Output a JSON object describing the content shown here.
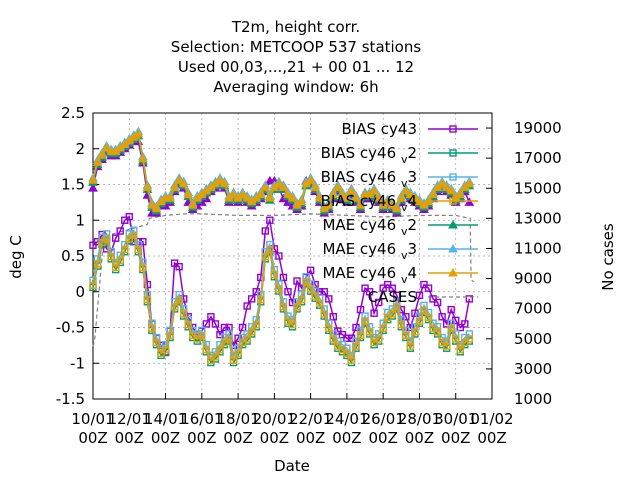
{
  "chart_data": {
    "type": "line",
    "title_lines": [
      "T2m, height corr.",
      "Selection: METCOOP    537 stations",
      "Used  00,03,...,21  + 00 01 ... 12",
      "Averaging window:  6h"
    ],
    "xlabel": "Date",
    "ylabel": "deg C",
    "y2label": "No cases",
    "ylim": [
      -1.5,
      2.5
    ],
    "y2lim": [
      1000,
      20000
    ],
    "xlim": [
      0,
      22
    ],
    "yticks": [
      "2.5",
      "2",
      "1.5",
      "1",
      "0.5",
      "0",
      "-0.5",
      "-1",
      "-1.5"
    ],
    "y2ticks": [
      "19000",
      "17000",
      "15000",
      "13000",
      "11000",
      "9000",
      "7000",
      "5000",
      "3000",
      "1000"
    ],
    "xticks": [
      {
        "day": "10/01",
        "hour": "00Z"
      },
      {
        "day": "12/01",
        "hour": "00Z"
      },
      {
        "day": "14/01",
        "hour": "00Z"
      },
      {
        "day": "16/01",
        "hour": "00Z"
      },
      {
        "day": "18/01",
        "hour": "00Z"
      },
      {
        "day": "20/01",
        "hour": "00Z"
      },
      {
        "day": "22/01",
        "hour": "00Z"
      },
      {
        "day": "24/01",
        "hour": "00Z"
      },
      {
        "day": "26/01",
        "hour": "00Z"
      },
      {
        "day": "28/01",
        "hour": "00Z"
      },
      {
        "day": "30/01",
        "hour": "00Z"
      },
      {
        "day": "01/02",
        "hour": "00Z"
      }
    ],
    "grid": true,
    "legend_position": "top-right",
    "series": [
      {
        "name": "BIAS cy43",
        "kind": "bias",
        "color": "#9400d3",
        "marker": "square",
        "model": "cy43"
      },
      {
        "name": "BIAS cy46_v2",
        "kind": "bias",
        "color": "#009e73",
        "marker": "square",
        "model": "v2"
      },
      {
        "name": "BIAS cy46_v3",
        "kind": "bias",
        "color": "#56b4e9",
        "marker": "square",
        "model": "v3"
      },
      {
        "name": "BIAS cy46_v4",
        "kind": "bias",
        "color": "#e69f00",
        "marker": "square",
        "model": "v4"
      },
      {
        "name": "MAE cy46_v2",
        "kind": "mae",
        "color": "#009e73",
        "marker": "triangle",
        "model": "v2"
      },
      {
        "name": "MAE cy46_v3",
        "kind": "mae",
        "color": "#56b4e9",
        "marker": "triangle",
        "model": "v3"
      },
      {
        "name": "MAE cy46_v4",
        "kind": "mae",
        "color": "#e69f00",
        "marker": "triangle",
        "model": "v4"
      },
      {
        "name": "CASES",
        "kind": "cases",
        "color": "#808080",
        "marker": "none",
        "model": "cases"
      }
    ],
    "legend_layout": [
      {
        "main": "BIAS cy43",
        "sub": ""
      },
      {
        "main": "BIAS cy46",
        "sub": "v",
        "tail": "2"
      },
      {
        "main": "BIAS cy46",
        "sub": "v",
        "tail": "3"
      },
      {
        "main": "BIAS cy46",
        "sub": "v",
        "tail": "4"
      },
      {
        "main": "MAE cy46",
        "sub": "v",
        "tail": "2"
      },
      {
        "main": "MAE cy46",
        "sub": "v",
        "tail": "3"
      },
      {
        "main": "MAE cy46",
        "sub": "v",
        "tail": "4"
      },
      {
        "main": "CASES",
        "sub": ""
      }
    ],
    "mae_base": {
      "x": [
        0,
        0.25,
        0.5,
        0.75,
        1,
        1.25,
        1.5,
        1.75,
        2,
        2.25,
        2.5,
        2.75,
        3,
        3.25,
        3.5,
        3.75,
        4,
        4.25,
        4.5,
        4.75,
        5,
        5.25,
        5.5,
        5.75,
        6,
        6.25,
        6.5,
        6.75,
        7,
        7.25,
        7.5,
        7.75,
        8,
        8.25,
        8.5,
        8.75,
        9,
        9.25,
        9.5,
        9.75,
        10,
        10.25,
        10.5,
        10.75,
        11,
        11.25,
        11.5,
        11.75,
        12,
        12.25,
        12.5,
        12.75,
        13,
        13.25,
        13.5,
        13.75,
        14,
        14.25,
        14.5,
        14.75,
        15,
        15.25,
        15.5,
        15.75,
        16,
        16.25,
        16.5,
        16.75,
        17,
        17.25,
        17.5,
        17.75,
        18,
        18.25,
        18.5,
        18.75,
        19,
        19.25,
        19.5,
        19.75,
        20,
        20.25,
        20.5,
        20.75
      ],
      "y": [
        1.55,
        1.8,
        1.9,
        2.0,
        1.95,
        1.95,
        2.0,
        2.05,
        2.1,
        2.15,
        2.2,
        1.85,
        1.45,
        1.2,
        1.15,
        1.25,
        1.3,
        1.3,
        1.45,
        1.55,
        1.5,
        1.35,
        1.2,
        1.3,
        1.35,
        1.4,
        1.45,
        1.5,
        1.55,
        1.5,
        1.3,
        1.35,
        1.3,
        1.35,
        1.3,
        1.25,
        1.3,
        1.35,
        1.45,
        1.3,
        1.45,
        1.5,
        1.45,
        1.35,
        1.3,
        1.2,
        1.25,
        1.5,
        1.55,
        1.45,
        1.3,
        1.15,
        1.2,
        1.35,
        1.45,
        1.35,
        1.3,
        1.4,
        1.3,
        1.2,
        1.35,
        1.35,
        1.4,
        1.3,
        1.2,
        1.25,
        1.2,
        1.15,
        1.3,
        1.4,
        1.35,
        1.3,
        1.25,
        1.2,
        1.25,
        1.35,
        1.45,
        1.5,
        1.45,
        1.4,
        1.3,
        1.35,
        1.45,
        1.5
      ]
    },
    "mae_offsets": {
      "v2": -0.02,
      "v3": 0.04,
      "v4": 0.01
    },
    "mae_cy43": {
      "x": [],
      "y": []
    },
    "bias_base": {
      "x": [
        0,
        0.25,
        0.5,
        0.75,
        1,
        1.25,
        1.5,
        1.75,
        2,
        2.25,
        2.5,
        2.75,
        3,
        3.25,
        3.5,
        3.75,
        4,
        4.25,
        4.5,
        4.75,
        5,
        5.25,
        5.5,
        5.75,
        6,
        6.25,
        6.5,
        6.75,
        7,
        7.25,
        7.5,
        7.75,
        8,
        8.25,
        8.5,
        8.75,
        9,
        9.25,
        9.5,
        9.75,
        10,
        10.25,
        10.5,
        10.75,
        11,
        11.25,
        11.5,
        11.75,
        12,
        12.25,
        12.5,
        12.75,
        13,
        13.25,
        13.5,
        13.75,
        14,
        14.25,
        14.5,
        14.75,
        15,
        15.25,
        15.5,
        15.75,
        16,
        16.25,
        16.5,
        16.75,
        17,
        17.25,
        17.5,
        17.75,
        18,
        18.25,
        18.5,
        18.75,
        19,
        19.25,
        19.5,
        19.75,
        20,
        20.25,
        20.5,
        20.75
      ],
      "y": [
        0.1,
        0.4,
        0.7,
        0.75,
        0.5,
        0.35,
        0.45,
        0.6,
        0.75,
        0.8,
        0.6,
        0.35,
        -0.1,
        -0.5,
        -0.7,
        -0.85,
        -0.8,
        -0.6,
        -0.2,
        -0.1,
        -0.3,
        -0.45,
        -0.6,
        -0.65,
        -0.6,
        -0.8,
        -0.95,
        -0.9,
        -0.8,
        -0.7,
        -0.65,
        -0.95,
        -0.85,
        -0.7,
        -0.65,
        -0.55,
        -0.45,
        -0.1,
        0.5,
        0.6,
        0.25,
        0.05,
        -0.2,
        -0.4,
        -0.45,
        -0.2,
        -0.1,
        0.15,
        0.05,
        -0.05,
        -0.15,
        -0.3,
        -0.5,
        -0.65,
        -0.75,
        -0.8,
        -0.85,
        -0.95,
        -0.75,
        -0.6,
        -0.4,
        -0.55,
        -0.7,
        -0.65,
        -0.5,
        -0.35,
        -0.3,
        -0.2,
        -0.45,
        -0.6,
        -0.75,
        -0.55,
        -0.4,
        -0.25,
        -0.35,
        -0.5,
        -0.55,
        -0.7,
        -0.75,
        -0.5,
        -0.65,
        -0.8,
        -0.7,
        -0.65
      ]
    },
    "bias_offsets": {
      "v2": -0.04,
      "v3": 0.06,
      "v4": -0.01
    },
    "bias_cy43": {
      "x": [
        0,
        0.25,
        0.5,
        0.75,
        1,
        1.25,
        1.5,
        1.75,
        2,
        2.25,
        2.5,
        2.75,
        3,
        3.25,
        3.5,
        3.75,
        4,
        4.25,
        4.5,
        4.75,
        5,
        5.25,
        5.5,
        5.75,
        6,
        6.25,
        6.5,
        6.75,
        7,
        7.25,
        7.5,
        7.75,
        8,
        8.25,
        8.5,
        8.75,
        9,
        9.25,
        9.5,
        9.75,
        10,
        10.25,
        10.5,
        10.75,
        11,
        11.25,
        11.5,
        11.75,
        12,
        12.25,
        12.5,
        12.75,
        13,
        13.25,
        13.5,
        13.75,
        14,
        14.25,
        14.5,
        14.75,
        15,
        15.25,
        15.5,
        15.75,
        16,
        16.25,
        16.5,
        16.75,
        17,
        17.25,
        17.5,
        17.75,
        18,
        18.25,
        18.5,
        18.75,
        19,
        19.25,
        19.5,
        19.75,
        20,
        20.25,
        20.5,
        20.75
      ],
      "y": [
        0.65,
        0.7,
        0.8,
        0.6,
        0.55,
        0.75,
        0.85,
        1.0,
        1.05,
        0.7,
        0.7,
        0.7,
        0.1,
        -0.45,
        -0.65,
        -0.75,
        -0.85,
        -0.55,
        0.4,
        0.35,
        -0.1,
        -0.35,
        -0.5,
        -0.6,
        -0.55,
        -0.45,
        -0.35,
        -0.45,
        -0.6,
        -0.5,
        -0.5,
        -0.75,
        -0.65,
        -0.5,
        -0.2,
        -0.1,
        0.0,
        0.2,
        0.85,
        1.0,
        0.6,
        0.5,
        0.2,
        0.0,
        -0.15,
        0.15,
        0.05,
        0.2,
        0.3,
        0.1,
        0.0,
        0.0,
        -0.1,
        -0.35,
        -0.55,
        -0.6,
        -0.65,
        -0.65,
        -0.5,
        -0.25,
        0.05,
        0.0,
        -0.3,
        -0.15,
        0.05,
        0.1,
        0.05,
        -0.05,
        -0.25,
        -0.35,
        -0.5,
        -0.3,
        -0.05,
        0.1,
        0.05,
        -0.1,
        -0.15,
        -0.35,
        -0.45,
        -0.25,
        -0.4,
        -0.5,
        -0.45,
        -0.1
      ]
    },
    "mae_cy43_y": [
      1.45,
      1.75,
      1.85,
      1.95,
      1.9,
      1.9,
      1.95,
      2.0,
      2.05,
      2.1,
      2.1,
      1.8,
      1.35,
      1.1,
      1.1,
      1.2,
      1.2,
      1.25,
      1.4,
      1.5,
      1.45,
      1.25,
      1.15,
      1.2,
      1.25,
      1.3,
      1.4,
      1.45,
      1.5,
      1.45,
      1.25,
      1.3,
      1.25,
      1.3,
      1.25,
      1.2,
      1.25,
      1.3,
      1.4,
      1.55,
      1.55,
      1.45,
      1.3,
      1.25,
      1.2,
      1.15,
      1.2,
      1.55,
      1.5,
      1.4,
      1.25,
      1.1,
      1.15,
      1.3,
      1.4,
      1.3,
      1.25,
      1.35,
      1.25,
      1.15,
      1.3,
      1.3,
      1.35,
      1.25,
      1.15,
      1.2,
      1.15,
      1.1,
      1.25,
      1.35,
      1.3,
      1.25,
      1.2,
      1.15,
      1.2,
      1.3,
      1.4,
      1.45,
      1.4,
      1.35,
      1.25,
      1.3,
      1.4,
      1.25
    ],
    "cases": {
      "x": [
        0,
        0.1,
        0.6,
        1.2,
        3.0,
        3.1,
        4.0,
        5.0,
        6.0,
        8.0,
        10.0,
        12.0,
        14.0,
        16.0,
        18.0,
        19.0,
        20.0,
        20.8,
        20.85,
        21.0
      ],
      "y": [
        4500,
        5000,
        11800,
        12000,
        12600,
        13000,
        13200,
        13300,
        13300,
        13200,
        13200,
        13300,
        13200,
        13100,
        13200,
        13200,
        13200,
        13000,
        8900,
        8800
      ]
    }
  }
}
